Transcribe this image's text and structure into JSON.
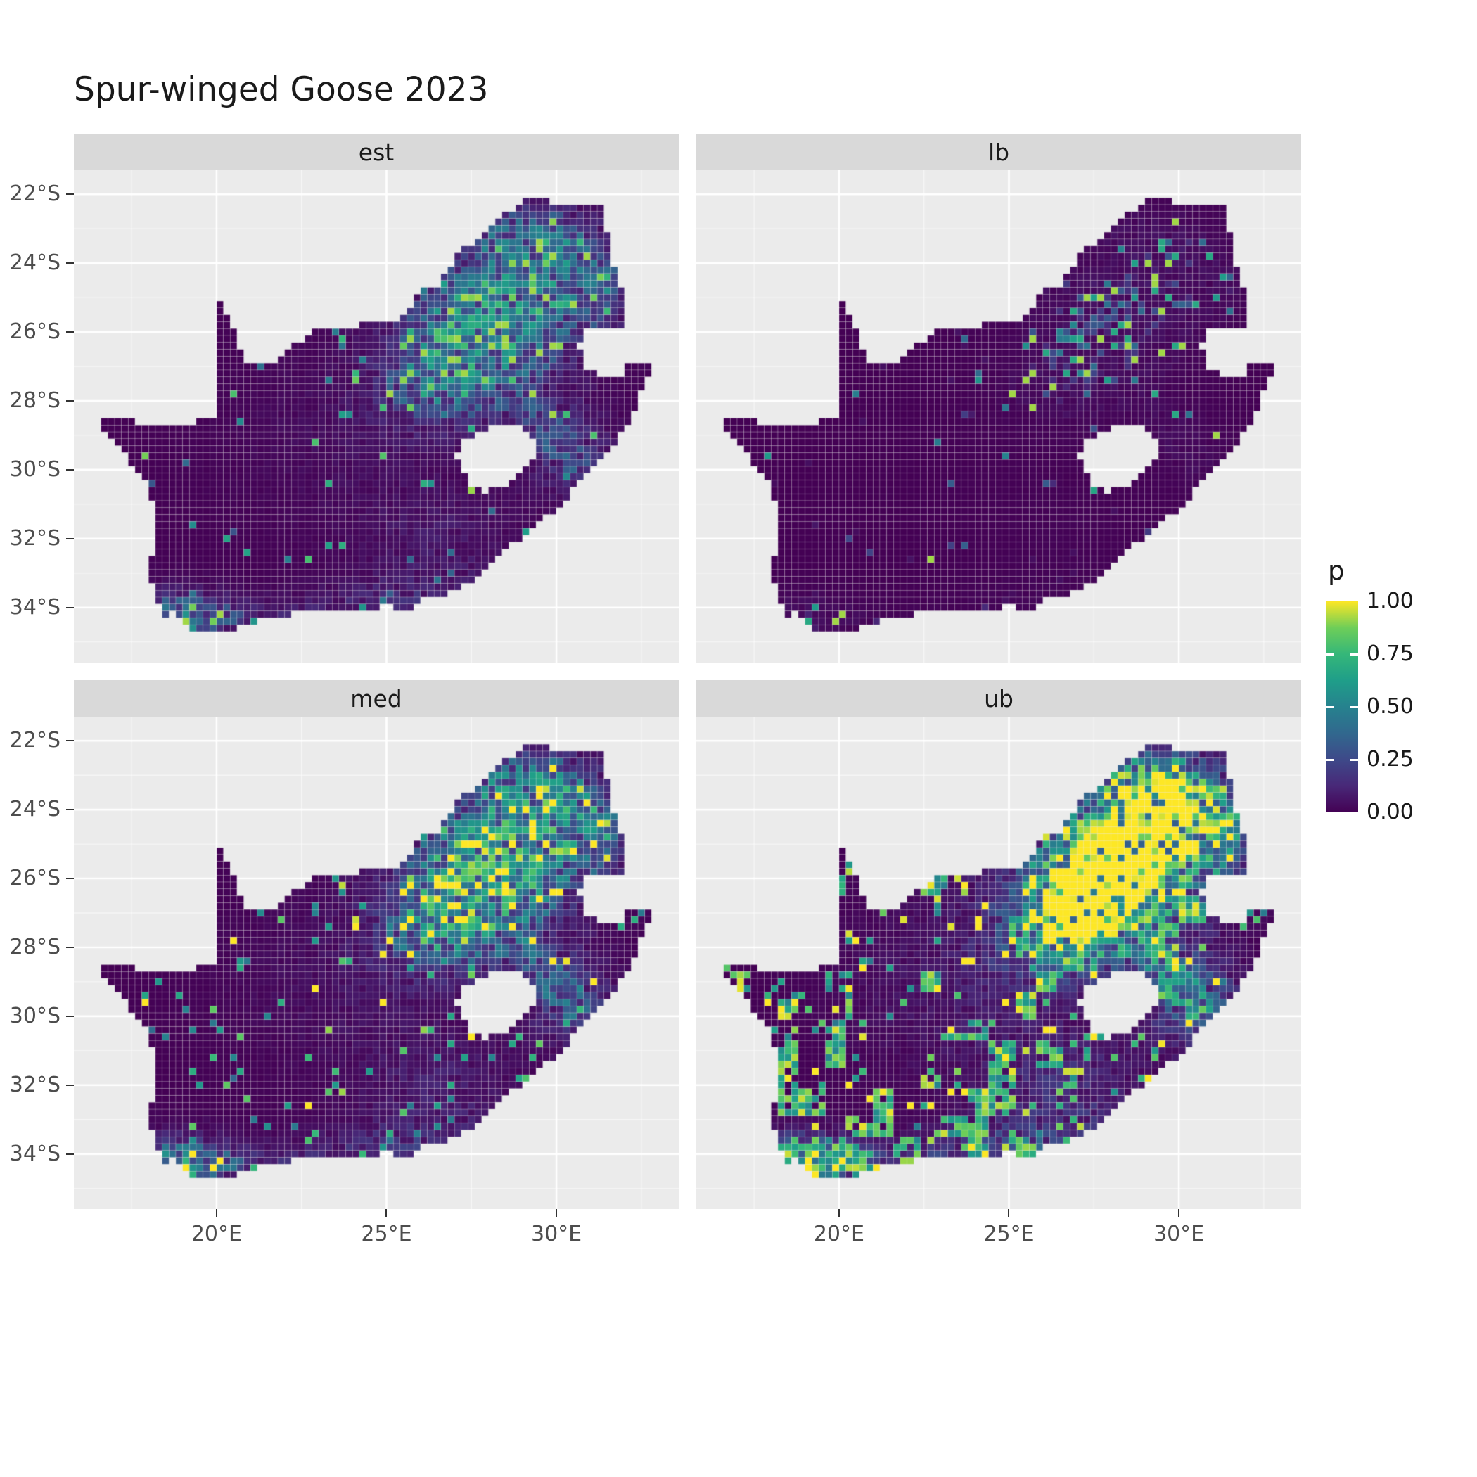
{
  "title": "Spur-winged Goose 2023",
  "facets": [
    {
      "id": "est",
      "label": "est"
    },
    {
      "id": "lb",
      "label": "lb"
    },
    {
      "id": "med",
      "label": "med"
    },
    {
      "id": "ub",
      "label": "ub"
    }
  ],
  "axes": {
    "x": {
      "ticks": [
        {
          "value": 20,
          "label": "20°E"
        },
        {
          "value": 25,
          "label": "25°E"
        },
        {
          "value": 30,
          "label": "30°E"
        }
      ],
      "minor": [
        17.5,
        22.5,
        27.5,
        32.5
      ]
    },
    "y": {
      "ticks": [
        {
          "value": -22,
          "label": "22°S"
        },
        {
          "value": -24,
          "label": "24°S"
        },
        {
          "value": -26,
          "label": "26°S"
        },
        {
          "value": -28,
          "label": "28°S"
        },
        {
          "value": -30,
          "label": "30°S"
        },
        {
          "value": -32,
          "label": "32°S"
        },
        {
          "value": -34,
          "label": "34°S"
        }
      ],
      "minor": [
        -23,
        -25,
        -27,
        -29,
        -31,
        -33,
        -35
      ]
    }
  },
  "legend": {
    "title": "p",
    "entries": [
      {
        "value": 1.0,
        "label": "1.00"
      },
      {
        "value": 0.75,
        "label": "0.75"
      },
      {
        "value": 0.5,
        "label": "0.50"
      },
      {
        "value": 0.25,
        "label": "0.25"
      },
      {
        "value": 0.0,
        "label": "0.00"
      }
    ]
  },
  "colors": {
    "panel_bg": "#ebebeb",
    "strip_bg": "#d9d9d9",
    "grid_major": "#ffffff",
    "axis_text": "#4d4d4d",
    "title_text": "#1a1a1a",
    "viridis": [
      "#440154",
      "#482878",
      "#3e4989",
      "#31688e",
      "#26828e",
      "#1f9e89",
      "#35b779",
      "#6ece58",
      "#fde725"
    ]
  },
  "chart_data": {
    "type": "heatmap",
    "title": "Spur-winged Goose 2023",
    "region": "South Africa (raster occupancy map, faceted)",
    "facets": [
      "est",
      "lb",
      "med",
      "ub"
    ],
    "value_variable": "p",
    "value_range": [
      0,
      1
    ],
    "legend_breaks": [
      0.0,
      0.25,
      0.5,
      0.75,
      1.0
    ],
    "x_ticks": [
      "20°E",
      "25°E",
      "30°E"
    ],
    "y_ticks": [
      "22°S",
      "24°S",
      "26°S",
      "28°S",
      "30°S",
      "32°S",
      "34°S"
    ],
    "extent": {
      "lon": [
        15.8,
        33.6
      ],
      "lat": [
        -35.6,
        -21.3
      ]
    },
    "cell_size_deg": 0.2,
    "facet_summary": {
      "lb": "lower bound: almost entirely p≈0 (dark purple), sparse teal cells near Gauteng hotspot and south coast",
      "est": "estimate: mostly p≈0 with strong mottled hotspot (teal/green/yellow) around 25–27°S, 27–30°E and along southwest/south coast",
      "med": "median: similar to est, slightly brighter speckle",
      "ub": "upper bound: large saturated yellow (p≈1) hotspot around Gauteng plus widespread yellow clumps across Western/Eastern Cape and interior"
    },
    "hotspots": [
      {
        "name": "gauteng-highveld",
        "lon": 27.9,
        "lat": -25.9,
        "amp": 1.0,
        "sx": 1.7,
        "sy": 1.4
      },
      {
        "name": "limpopo-bushveld",
        "lon": 29.7,
        "lat": -23.9,
        "amp": 0.55,
        "sx": 1.3,
        "sy": 1.0
      },
      {
        "name": "nw-freestate",
        "lon": 26.3,
        "lat": -27.6,
        "amp": 0.45,
        "sx": 1.2,
        "sy": 0.9
      },
      {
        "name": "sw-cape-coast",
        "lon": 18.9,
        "lat": -34.15,
        "amp": 0.6,
        "sx": 1.0,
        "sy": 0.55
      },
      {
        "name": "south-coast-west",
        "lon": 21.0,
        "lat": -34.3,
        "amp": 0.35,
        "sx": 1.6,
        "sy": 0.4
      },
      {
        "name": "south-coast-east",
        "lon": 25.3,
        "lat": -33.85,
        "amp": 0.35,
        "sx": 1.8,
        "sy": 0.5
      },
      {
        "name": "kzn-coast",
        "lon": 30.7,
        "lat": -29.9,
        "amp": 0.4,
        "sx": 0.9,
        "sy": 0.8
      },
      {
        "name": "kzn-midlands",
        "lon": 29.7,
        "lat": -28.8,
        "amp": 0.35,
        "sx": 1.0,
        "sy": 0.8
      },
      {
        "name": "eastern-cape-interior",
        "lon": 26.6,
        "lat": -32.3,
        "amp": 0.22,
        "sx": 1.6,
        "sy": 1.2
      },
      {
        "name": "limpopo-north",
        "lon": 28.6,
        "lat": -22.8,
        "amp": 0.3,
        "sx": 1.6,
        "sy": 0.6
      },
      {
        "name": "lowveld",
        "lon": 31.3,
        "lat": -24.9,
        "amp": 0.35,
        "sx": 0.9,
        "sy": 1.1
      },
      {
        "name": "central-sparse",
        "lon": 24.0,
        "lat": -29.0,
        "amp": 0.12,
        "sx": 2.6,
        "sy": 2.0
      }
    ],
    "map": {
      "outer": [
        [
          16.45,
          -28.63
        ],
        [
          17.2,
          -28.4
        ],
        [
          18.0,
          -28.8
        ],
        [
          19.0,
          -28.75
        ],
        [
          19.6,
          -28.5
        ],
        [
          19.99,
          -28.42
        ],
        [
          19.99,
          -24.8
        ],
        [
          20.45,
          -25.7
        ],
        [
          20.65,
          -26.35
        ],
        [
          20.85,
          -26.8
        ],
        [
          21.7,
          -26.87
        ],
        [
          22.2,
          -26.45
        ],
        [
          22.9,
          -26.0
        ],
        [
          24.2,
          -25.8
        ],
        [
          25.0,
          -25.75
        ],
        [
          25.6,
          -25.5
        ],
        [
          25.95,
          -24.8
        ],
        [
          26.5,
          -24.65
        ],
        [
          27.1,
          -23.7
        ],
        [
          27.95,
          -23.15
        ],
        [
          28.35,
          -22.6
        ],
        [
          29.1,
          -22.2
        ],
        [
          29.45,
          -22.15
        ],
        [
          30.4,
          -22.3
        ],
        [
          31.3,
          -22.35
        ],
        [
          31.6,
          -23.6
        ],
        [
          31.75,
          -24.2
        ],
        [
          32.0,
          -25.1
        ],
        [
          31.97,
          -25.95
        ],
        [
          30.8,
          -25.83
        ],
        [
          30.67,
          -26.4
        ],
        [
          30.8,
          -27.0
        ],
        [
          31.15,
          -27.2
        ],
        [
          31.6,
          -27.3
        ],
        [
          31.96,
          -27.32
        ],
        [
          32.1,
          -26.85
        ],
        [
          32.89,
          -26.85
        ],
        [
          32.6,
          -27.5
        ],
        [
          32.1,
          -28.7
        ],
        [
          31.75,
          -29.2
        ],
        [
          31.05,
          -29.9
        ],
        [
          30.25,
          -30.9
        ],
        [
          29.35,
          -31.7
        ],
        [
          28.5,
          -32.35
        ],
        [
          27.8,
          -33.05
        ],
        [
          26.9,
          -33.6
        ],
        [
          26.0,
          -33.75
        ],
        [
          25.65,
          -34.05
        ],
        [
          25.0,
          -33.98
        ],
        [
          24.1,
          -34.15
        ],
        [
          23.0,
          -34.1
        ],
        [
          22.15,
          -34.2
        ],
        [
          21.0,
          -34.45
        ],
        [
          20.0,
          -34.82
        ],
        [
          19.3,
          -34.62
        ],
        [
          18.75,
          -34.1
        ],
        [
          18.4,
          -34.3
        ],
        [
          18.3,
          -33.9
        ],
        [
          17.9,
          -32.8
        ],
        [
          18.3,
          -32.1
        ],
        [
          18.25,
          -31.1
        ],
        [
          17.8,
          -30.2
        ],
        [
          17.05,
          -29.25
        ]
      ],
      "lesotho_hole": [
        [
          27.05,
          -29.65
        ],
        [
          27.35,
          -29.1
        ],
        [
          27.75,
          -28.85
        ],
        [
          28.6,
          -28.6
        ],
        [
          29.2,
          -28.95
        ],
        [
          29.45,
          -29.35
        ],
        [
          29.1,
          -29.95
        ],
        [
          28.55,
          -30.4
        ],
        [
          27.95,
          -30.65
        ],
        [
          27.45,
          -30.4
        ],
        [
          27.2,
          -30.0
        ]
      ]
    }
  }
}
